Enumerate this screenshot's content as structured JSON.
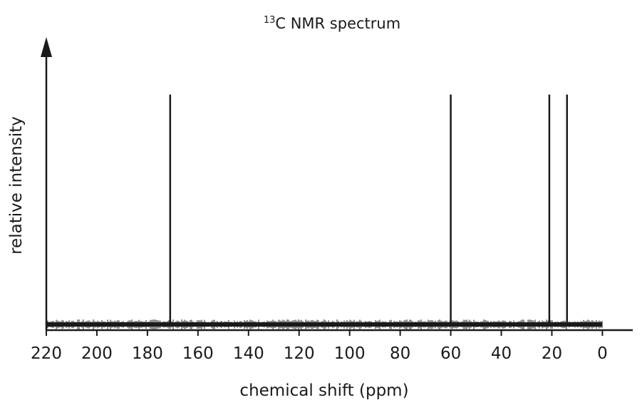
{
  "chart_data": {
    "type": "stick",
    "title_superscript": "13",
    "title": "C NMR spectrum",
    "xlabel": "chemical shift (ppm)",
    "ylabel": "relative intensity",
    "x": [
      171,
      60,
      21,
      14
    ],
    "values": [
      1,
      1,
      1,
      1
    ],
    "color": "#1a1a1a",
    "xlim": [
      220,
      -12
    ],
    "xticks": [
      220,
      200,
      180,
      160,
      140,
      120,
      100,
      80,
      60,
      40,
      20,
      0
    ],
    "ylim": [
      0,
      1.25
    ]
  }
}
